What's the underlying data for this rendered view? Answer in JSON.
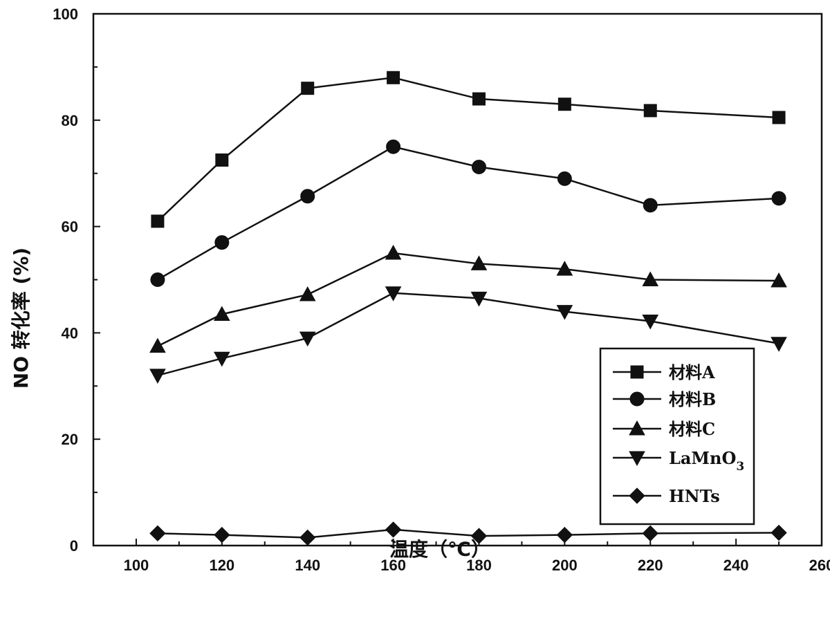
{
  "chart_data": {
    "type": "line",
    "xlabel": "温度（℃）",
    "ylabel": "NO 转化率 (%)",
    "xlim": [
      90,
      260
    ],
    "ylim": [
      0,
      100
    ],
    "xticks": [
      100,
      120,
      140,
      160,
      180,
      200,
      220,
      240,
      260
    ],
    "yticks": [
      0,
      20,
      40,
      60,
      80,
      100
    ],
    "x": [
      105,
      120,
      140,
      160,
      180,
      200,
      220,
      250
    ],
    "legend_position": "lower-right",
    "series": [
      {
        "name": "材料A",
        "marker": "square",
        "values": [
          61,
          72.5,
          86,
          88,
          84,
          83,
          81.8,
          80.5
        ]
      },
      {
        "name": "材料B",
        "marker": "circle",
        "values": [
          50,
          57,
          65.7,
          75,
          71.2,
          69,
          64,
          65.3
        ]
      },
      {
        "name": "材料C",
        "marker": "triangle-up",
        "values": [
          37.5,
          43.5,
          47.2,
          55,
          53,
          52,
          50,
          49.8
        ]
      },
      {
        "name": "LaMnO",
        "name_subscript": "3",
        "marker": "triangle-down",
        "values": [
          32,
          35.2,
          39,
          47.5,
          46.5,
          44,
          42.2,
          38
        ]
      },
      {
        "name": "HNTs",
        "marker": "diamond",
        "values": [
          2.3,
          2,
          1.5,
          3,
          1.8,
          2,
          2.3,
          2.4
        ]
      }
    ]
  }
}
